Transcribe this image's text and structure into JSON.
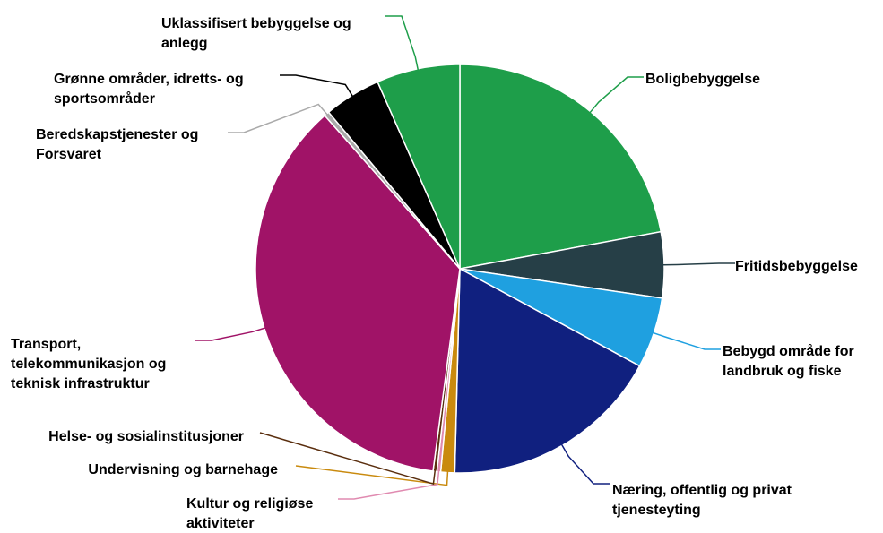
{
  "chart_data": {
    "type": "pie",
    "categories": [
      "Boligbebyggelse",
      "Fritidsbebyggelse",
      "Bebygd område for landbruk og fiske",
      "Næring, offentlig og privat tjenesteyting",
      "Undervisning og barnehage",
      "Kultur og religiøse aktiviteter",
      "Helse- og sosialinstitusjoner",
      "Transport, telekommunikasjon og teknisk infrastruktur",
      "Beredskapstjenester og Forsvaret",
      "Grønne områder, idretts- og sportsområder",
      "Uklassifisert bebyggelse og anlegg"
    ],
    "values": [
      22.1,
      5.2,
      5.6,
      17.5,
      1.1,
      0.3,
      0.3,
      36.4,
      0.4,
      4.5,
      6.6
    ],
    "colors": [
      "#1e9e4a",
      "#263f47",
      "#1fa0e0",
      "#10207f",
      "#c98a0e",
      "#e08ab0",
      "#5a2e0e",
      "#a01367",
      "#aaaaaa",
      "#000000",
      "#1e9e4a"
    ]
  }
}
